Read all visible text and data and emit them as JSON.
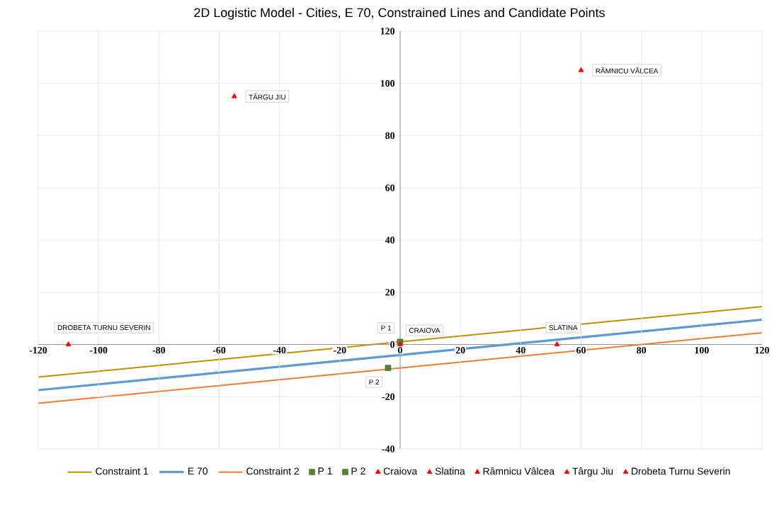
{
  "chart_data": {
    "type": "line",
    "title": "2D Logistic Model - Cities, E 70, Constrained Lines and Candidate Points",
    "xlim": [
      -120,
      120
    ],
    "ylim": [
      -40,
      120
    ],
    "xticks": [
      -120,
      -100,
      -80,
      -60,
      -40,
      -20,
      0,
      20,
      40,
      60,
      80,
      100,
      120
    ],
    "yticks": [
      -40,
      -20,
      0,
      20,
      40,
      60,
      80,
      100,
      120
    ],
    "grid": true,
    "legend": "bottom",
    "series": [
      {
        "name": "Constraint 1",
        "color": "#bf9000",
        "x": [
          -120,
          120
        ],
        "values": [
          -12.5,
          14.5
        ]
      },
      {
        "name": "E 70",
        "color": "#5b9bd5",
        "x": [
          -120,
          120
        ],
        "values": [
          -17.5,
          9.5
        ]
      },
      {
        "name": "Constraint 2",
        "color": "#ed7d31",
        "x": [
          -120,
          120
        ],
        "values": [
          -22.5,
          4.5
        ]
      },
      {
        "name": "P 1",
        "type": "scatter",
        "marker": "square",
        "color": "#548235",
        "x": [
          0
        ],
        "values": [
          1
        ]
      },
      {
        "name": "P 2",
        "type": "scatter",
        "marker": "square",
        "color": "#548235",
        "x": [
          -4
        ],
        "values": [
          -9
        ]
      },
      {
        "name": "Craiova",
        "type": "scatter",
        "marker": "triangle",
        "color": "#ff0000",
        "x": [
          0
        ],
        "values": [
          0
        ]
      },
      {
        "name": "Slatina",
        "type": "scatter",
        "marker": "triangle",
        "color": "#ff0000",
        "x": [
          52
        ],
        "values": [
          0
        ]
      },
      {
        "name": "Râmnicu Vâlcea",
        "type": "scatter",
        "marker": "triangle",
        "color": "#ff0000",
        "x": [
          60
        ],
        "values": [
          105
        ]
      },
      {
        "name": "Târgu Jiu",
        "type": "scatter",
        "marker": "triangle",
        "color": "#ff0000",
        "x": [
          -55
        ],
        "values": [
          95
        ]
      },
      {
        "name": "Drobeta Turnu Severin",
        "type": "scatter",
        "marker": "triangle",
        "color": "#ff0000",
        "x": [
          -110
        ],
        "values": [
          0
        ]
      }
    ],
    "annotations": [
      {
        "text": "P 1",
        "x": 0,
        "y": 1
      },
      {
        "text": "P 2",
        "x": -4,
        "y": -9
      },
      {
        "text": "CRAIOVA",
        "x": 0,
        "y": 0
      },
      {
        "text": "SLATINA",
        "x": 52,
        "y": 0
      },
      {
        "text": "RÂMNICU VÂLCEA",
        "x": 60,
        "y": 105
      },
      {
        "text": "TÂRGU JIU",
        "x": -55,
        "y": 95
      },
      {
        "text": "DROBETA TURNU SEVERIN",
        "x": -110,
        "y": 0
      }
    ]
  }
}
